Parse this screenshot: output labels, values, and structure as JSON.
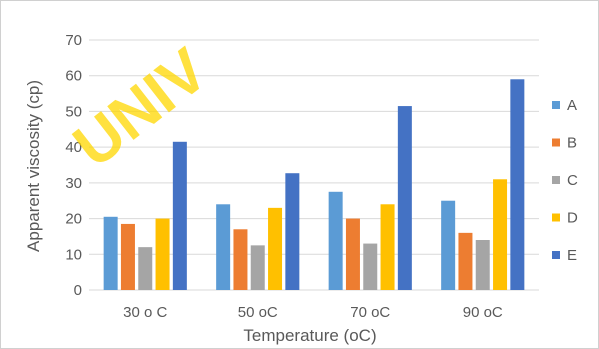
{
  "watermark": "UNIV",
  "chart_data": {
    "type": "bar",
    "categories": [
      "30 o C",
      "50 oC",
      "70 oC",
      "90 oC"
    ],
    "series": [
      {
        "name": "A",
        "color": "#5b9bd5",
        "values": [
          20.5,
          24,
          27.5,
          25
        ]
      },
      {
        "name": "B",
        "color": "#ed7d31",
        "values": [
          18.5,
          17,
          20,
          16
        ]
      },
      {
        "name": "C",
        "color": "#a5a5a5",
        "values": [
          12,
          12.5,
          13,
          14
        ]
      },
      {
        "name": "D",
        "color": "#ffc000",
        "values": [
          20,
          23,
          24,
          31
        ]
      },
      {
        "name": "E",
        "color": "#4472c4",
        "values": [
          41.5,
          32.7,
          51.5,
          59
        ]
      }
    ],
    "title": "",
    "xlabel": "Temperature (oC)",
    "ylabel": "Apparent viscosity (cp)",
    "ylim": [
      0,
      70
    ],
    "yticks": [
      "0",
      "10",
      "20",
      "30",
      "40",
      "50",
      "60",
      "70"
    ],
    "grid": true,
    "legend_position": "right"
  }
}
